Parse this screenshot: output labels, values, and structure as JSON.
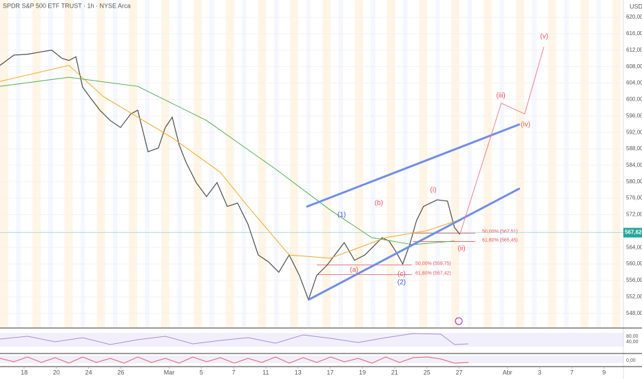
{
  "chart_data": {
    "type": "line",
    "title": "SPDR S&P 500 ETF TRUST · 1h · NYSE Arca",
    "currency": "USD",
    "xlim": [
      -1.5,
      37.2
    ],
    "ylim": [
      544.6,
      624.2
    ],
    "xticks": [
      {
        "value": 0,
        "label": "18"
      },
      {
        "value": 2,
        "label": "20"
      },
      {
        "value": 4,
        "label": "24"
      },
      {
        "value": 6,
        "label": "26"
      },
      {
        "value": 9,
        "label": "Mar"
      },
      {
        "value": 11,
        "label": "5"
      },
      {
        "value": 13,
        "label": "7"
      },
      {
        "value": 15,
        "label": "11"
      },
      {
        "value": 17,
        "label": "13"
      },
      {
        "value": 19,
        "label": "17"
      },
      {
        "value": 21,
        "label": "19"
      },
      {
        "value": 23,
        "label": "21"
      },
      {
        "value": 25,
        "label": "25"
      },
      {
        "value": 27,
        "label": "27"
      },
      {
        "value": 30,
        "label": "Abr"
      },
      {
        "value": 32,
        "label": "3"
      },
      {
        "value": 34,
        "label": "7"
      },
      {
        "value": 36,
        "label": "9"
      }
    ],
    "yticks": [
      {
        "value": 548,
        "label": "548,00"
      },
      {
        "value": 552,
        "label": "552,00"
      },
      {
        "value": 556,
        "label": "556,00"
      },
      {
        "value": 560,
        "label": "560,00"
      },
      {
        "value": 564,
        "label": "564,00"
      },
      {
        "value": 568,
        "label": "568,00"
      },
      {
        "value": 572,
        "label": "572,00"
      },
      {
        "value": 576,
        "label": "576,00"
      },
      {
        "value": 580,
        "label": "580,00"
      },
      {
        "value": 584,
        "label": "584,00"
      },
      {
        "value": 588,
        "label": "588,00"
      },
      {
        "value": 592,
        "label": "592,00"
      },
      {
        "value": 596,
        "label": "596,00"
      },
      {
        "value": 600,
        "label": "600,00"
      },
      {
        "value": 604,
        "label": "604,00"
      },
      {
        "value": 608,
        "label": "608,00"
      },
      {
        "value": 612,
        "label": "612,00"
      },
      {
        "value": 616,
        "label": "616,00"
      },
      {
        "value": 620,
        "label": "620,00"
      }
    ],
    "series": [
      {
        "color": "#4a4a4a",
        "x": [
          -1.5,
          -0.64,
          0.21,
          1.07,
          1.71,
          2.35,
          2.78,
          3.21,
          3.63,
          4.06,
          4.7,
          5.34,
          5.98,
          6.62,
          7.05,
          7.69,
          8.33,
          8.76,
          9.19,
          9.62,
          10.04,
          10.68,
          11.32,
          11.97,
          12.61,
          13.25,
          13.89,
          14.53,
          15.17,
          15.81,
          16.45,
          17.09,
          17.65,
          18.16,
          18.8,
          19.44,
          19.87,
          20.51,
          21.15,
          21.79,
          22.22,
          22.65,
          23.08,
          23.5,
          23.93,
          24.36,
          24.79,
          25.21,
          25.64,
          26.28,
          26.71,
          27.05
        ],
        "values": [
          608.3,
          610.8,
          611,
          611.6,
          612,
          610,
          609.5,
          610.4,
          603,
          600.7,
          597.4,
          594.9,
          593.2,
          596.5,
          597.4,
          587.3,
          588.2,
          593.2,
          595.7,
          589,
          584.8,
          579.8,
          576.4,
          579.8,
          574,
          574.8,
          569.7,
          562.2,
          560.5,
          558,
          562.2,
          557.2,
          551.3,
          557.2,
          559.7,
          563,
          565.2,
          560.9,
          562.2,
          564.7,
          566.4,
          565.6,
          563,
          560,
          564.7,
          570.6,
          574,
          574.8,
          575.6,
          575.3,
          568.9,
          567.2
        ]
      },
      {
        "color": "#f5a623",
        "x": [
          -1.5,
          2.78,
          4.92,
          9.19,
          12.18,
          13.89,
          16.45,
          19.01,
          22.44,
          25.0,
          26.92
        ],
        "values": [
          604.4,
          608.3,
          600.7,
          590.7,
          582.3,
          574,
          562.2,
          561.4,
          566.4,
          568.1,
          570.6
        ]
      },
      {
        "color": "#4caf50",
        "x": [
          -1.5,
          2.78,
          7.05,
          11.32,
          15.6,
          19.01,
          21.58,
          24.14,
          26.71
        ],
        "values": [
          603.2,
          605.4,
          603.2,
          594.9,
          583.1,
          573.1,
          566.4,
          564.7,
          565.6
        ]
      },
      {
        "color": "#6f8de8",
        "x": [
          17.52,
          30.77
        ],
        "values": [
          573.9,
          594
        ]
      },
      {
        "color": "#6f8de8",
        "x": [
          17.65,
          30.77
        ],
        "values": [
          551.3,
          578.4
        ]
      },
      {
        "color": "#f07c8c",
        "x": [
          27.05,
          29.62,
          31.07,
          32.26
        ],
        "values": [
          567.2,
          599.1,
          596.5,
          612.8
        ]
      }
    ],
    "last_price": {
      "value": 567.62,
      "label": "567,62"
    },
    "fib_levels": [
      {
        "value": 567.51,
        "label": "50,00% (567,51)"
      },
      {
        "value": 565.45,
        "label": "61,80% (565,45)"
      },
      {
        "value": 559.75,
        "label": "50,00% (559,75)"
      },
      {
        "value": 557.42,
        "label": "61,80% (557,42)"
      }
    ],
    "wave_labels": [
      "(1)",
      "(2)",
      "(a)",
      "(b)",
      "(c)",
      "(i)",
      "(ii)",
      "(iii)",
      "(iv)",
      "(v)"
    ],
    "indicator_labels": [
      "80,00",
      "40,00",
      "0,00"
    ]
  }
}
